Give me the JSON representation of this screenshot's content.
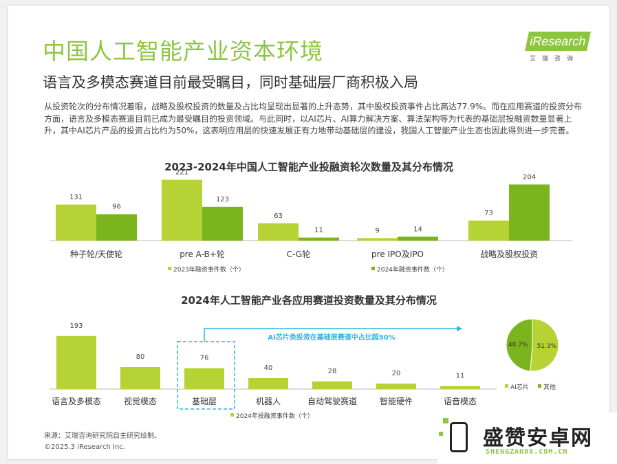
{
  "header": {
    "title": "中国人工智能产业资本环境",
    "subtitle": "语言及多模态赛道目前最受瞩目，同时基础层厂商积极入局",
    "paragraph": "从投资轮次的分布情况着眼，战略及股权投资的数量及占比均呈现出显著的上升态势，其中股权投资事件占比高达77.9%。而在应用赛道的投资分布方面，语言及多模态赛道目前已成为最受瞩目的投资领域。与此同时，以AI芯片、AI算力解决方案、算法架构等为代表的基础层投融资数量显著上升，其中AI芯片产品的投资占比约为50%，这表明应用层的快速发展正有力地带动基础层的建设，我国人工智能产业生态也因此得到进一步完善。"
  },
  "logo": {
    "en": "iResearch",
    "cn": "艾瑞咨询"
  },
  "colors": {
    "green_light": "#b5d334",
    "green_dark": "#7ab51d",
    "title_green": "#8cc63f",
    "callout": "#29b6e0"
  },
  "chart_data": [
    {
      "type": "bar",
      "title": "2023-2024年中国人工智能产业投融资轮次数量及其分布情况",
      "categories": [
        "种子轮/天使轮",
        "pre A-B+轮",
        "C-G轮",
        "pre IPO及IPO",
        "战略及股权投资"
      ],
      "series": [
        {
          "name": "2023年融资事件数（个）",
          "values": [
            131,
            221,
            63,
            9,
            73
          ]
        },
        {
          "name": "2024年融资事件数（个）",
          "values": [
            96,
            123,
            11,
            14,
            204
          ]
        }
      ],
      "ylim": [
        0,
        230
      ]
    },
    {
      "type": "bar",
      "title": "2024年人工智能产业各应用赛道投资数量及其分布情况",
      "categories": [
        "语言及多模态",
        "视觉模态",
        "基础层",
        "机器人",
        "自动驾驶赛道",
        "智能硬件",
        "语音模态"
      ],
      "series": [
        {
          "name": "2024年投融资事件数（个）",
          "values": [
            193,
            80,
            76,
            40,
            28,
            20,
            11
          ]
        }
      ],
      "ylim": [
        0,
        200
      ],
      "annotation": "AI芯片类投资在基础层赛道中占比超50%"
    },
    {
      "type": "pie",
      "labels": [
        "AI芯片",
        "其他"
      ],
      "values": [
        51.3,
        48.7
      ],
      "value_labels": [
        "51.3%",
        "48.7%"
      ]
    }
  ],
  "footer": {
    "source": "来源：艾瑞咨询研究院自主研究绘制。",
    "copyright": "©2025.3 iResearch Inc."
  },
  "watermark": {
    "name": "盛赞安卓网",
    "url": "SHENGZAN08.COM.CN"
  }
}
